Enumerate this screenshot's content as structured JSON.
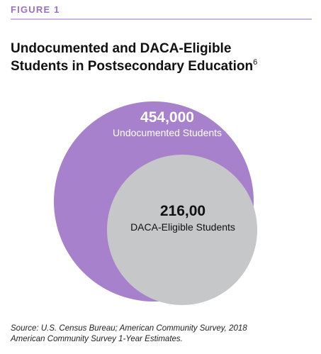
{
  "header": {
    "label": "FIGURE 1",
    "title_lines": [
      "Undocumented and DACA-Eligible",
      "Students in Postsecondary Education"
    ],
    "footnote_mark": "6"
  },
  "circles": [
    {
      "number": "454,000",
      "label": "Undocumented Students"
    },
    {
      "number": "216,00",
      "label": "DACA-Eligible Students"
    }
  ],
  "source": [
    "Source: U.S. Census Bureau; American Community Survey, 2018",
    "American Community Survey 1-Year Estimates."
  ]
}
